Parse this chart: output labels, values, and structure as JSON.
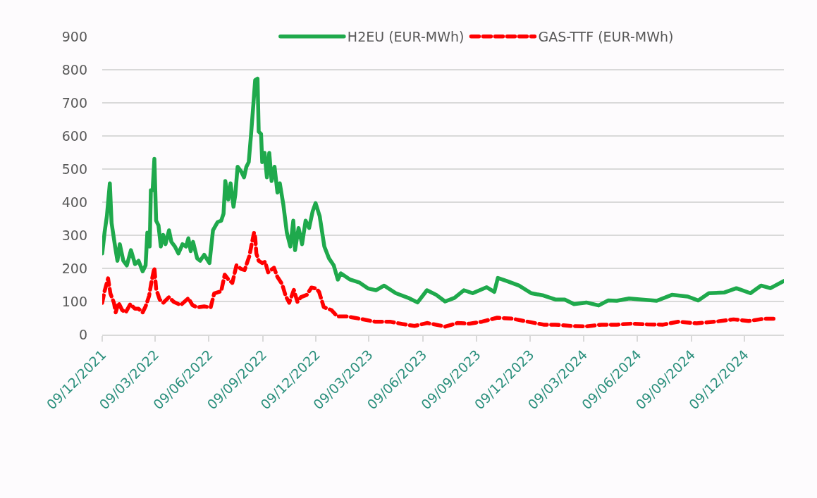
{
  "chart_data": {
    "type": "line",
    "xlim": [
      "2021-12-09",
      "2025-02-14"
    ],
    "xticks": [
      {
        "value": "2021-12-09",
        "label": "09/12/2021"
      },
      {
        "value": "2022-03-09",
        "label": "09/03/2022"
      },
      {
        "value": "2022-06-09",
        "label": "09/06/2022"
      },
      {
        "value": "2022-09-09",
        "label": "09/09/2022"
      },
      {
        "value": "2022-12-09",
        "label": "09/12/2022"
      },
      {
        "value": "2023-03-09",
        "label": "09/03/2023"
      },
      {
        "value": "2023-06-09",
        "label": "09/06/2023"
      },
      {
        "value": "2023-09-09",
        "label": "09/09/2023"
      },
      {
        "value": "2023-12-09",
        "label": "09/12/2023"
      },
      {
        "value": "2024-03-09",
        "label": "09/03/2024"
      },
      {
        "value": "2024-06-09",
        "label": "09/06/2024"
      },
      {
        "value": "2024-09-09",
        "label": "09/09/2024"
      },
      {
        "value": "2024-12-09",
        "label": "09/12/2024"
      }
    ],
    "ylim": [
      0,
      900
    ],
    "yticks": [
      0,
      100,
      200,
      300,
      400,
      500,
      600,
      700,
      800,
      900
    ],
    "grid": "y",
    "legend": "top",
    "marker": "none",
    "series": [
      {
        "name": "H2EU (EUR-MWh)",
        "color": "#1fa94c",
        "line_style": "solid",
        "x": [
          "2021-12-09",
          "2021-12-13",
          "2021-12-17",
          "2021-12-22",
          "2021-12-25",
          "2021-12-31",
          "2022-01-04",
          "2022-01-08",
          "2022-01-14",
          "2022-01-20",
          "2022-01-27",
          "2022-02-03",
          "2022-02-09",
          "2022-02-16",
          "2022-02-21",
          "2022-02-24",
          "2022-02-28",
          "2022-03-02",
          "2022-03-05",
          "2022-03-08",
          "2022-03-11",
          "2022-03-15",
          "2022-03-19",
          "2022-03-23",
          "2022-03-27",
          "2022-04-02",
          "2022-04-06",
          "2022-04-12",
          "2022-04-18",
          "2022-04-25",
          "2022-05-01",
          "2022-05-05",
          "2022-05-09",
          "2022-05-13",
          "2022-05-20",
          "2022-05-25",
          "2022-06-01",
          "2022-06-10",
          "2022-06-16",
          "2022-06-24",
          "2022-06-30",
          "2022-07-04",
          "2022-07-07",
          "2022-07-12",
          "2022-07-16",
          "2022-07-21",
          "2022-07-24",
          "2022-07-28",
          "2022-08-03",
          "2022-08-08",
          "2022-08-12",
          "2022-08-16",
          "2022-08-20",
          "2022-08-24",
          "2022-08-27",
          "2022-08-31",
          "2022-09-02",
          "2022-09-06",
          "2022-09-08",
          "2022-09-12",
          "2022-09-16",
          "2022-09-20",
          "2022-09-24",
          "2022-09-29",
          "2022-10-04",
          "2022-10-08",
          "2022-10-14",
          "2022-10-20",
          "2022-10-26",
          "2022-10-31",
          "2022-11-03",
          "2022-11-09",
          "2022-11-15",
          "2022-11-21",
          "2022-11-27",
          "2022-12-03",
          "2022-12-08",
          "2022-12-15",
          "2022-12-23",
          "2022-12-31",
          "2023-01-08",
          "2023-01-15",
          "2023-01-20",
          "2023-02-05",
          "2023-02-21",
          "2023-03-08",
          "2023-03-21",
          "2023-04-04",
          "2023-04-24",
          "2023-05-15",
          "2023-05-31",
          "2023-06-16",
          "2023-07-02",
          "2023-07-17",
          "2023-08-02",
          "2023-08-18",
          "2023-09-02",
          "2023-09-26",
          "2023-10-09",
          "2023-10-15",
          "2023-10-30",
          "2023-11-20",
          "2023-12-11",
          "2024-01-01",
          "2024-01-21",
          "2024-02-06",
          "2024-02-22",
          "2024-03-14",
          "2024-04-04",
          "2024-04-20",
          "2024-05-05",
          "2024-05-26",
          "2024-06-16",
          "2024-07-12",
          "2024-08-07",
          "2024-09-03",
          "2024-09-21",
          "2024-10-09",
          "2024-11-04",
          "2024-11-25",
          "2024-12-19",
          "2025-01-06",
          "2025-01-22",
          "2025-02-14"
        ],
        "values": [
          245,
          308,
          358,
          457,
          337,
          266,
          223,
          273,
          223,
          209,
          255,
          213,
          223,
          191,
          209,
          308,
          266,
          436,
          436,
          531,
          344,
          330,
          266,
          301,
          273,
          315,
          280,
          266,
          245,
          273,
          266,
          291,
          252,
          280,
          230,
          223,
          241,
          216,
          315,
          340,
          344,
          365,
          464,
          408,
          457,
          386,
          422,
          507,
          493,
          475,
          507,
          521,
          606,
          698,
          769,
          773,
          613,
          606,
          521,
          549,
          475,
          549,
          464,
          507,
          429,
          457,
          393,
          308,
          266,
          344,
          255,
          322,
          273,
          344,
          322,
          372,
          397,
          358,
          266,
          230,
          209,
          166,
          185,
          166,
          157,
          139,
          134,
          148,
          125,
          111,
          97,
          134,
          120,
          100,
          111,
          134,
          125,
          143,
          129,
          171,
          162,
          148,
          125,
          118,
          106,
          106,
          92,
          97,
          88,
          103,
          102,
          109,
          106,
          102,
          120,
          115,
          103,
          125,
          127,
          140,
          125,
          148,
          140,
          162
        ]
      },
      {
        "name": "GAS-TTF (EUR-MWh)",
        "color": "#ff0000",
        "line_style": "dashed",
        "x": [
          "2021-12-09",
          "2021-12-13",
          "2021-12-19",
          "2021-12-23",
          "2021-12-29",
          "2022-01-01",
          "2022-01-06",
          "2022-01-12",
          "2022-01-18",
          "2022-01-26",
          "2022-02-03",
          "2022-02-09",
          "2022-02-16",
          "2022-02-21",
          "2022-02-27",
          "2022-03-03",
          "2022-03-08",
          "2022-03-11",
          "2022-03-17",
          "2022-03-23",
          "2022-04-02",
          "2022-04-10",
          "2022-04-22",
          "2022-05-05",
          "2022-05-12",
          "2022-05-20",
          "2022-06-01",
          "2022-06-12",
          "2022-06-18",
          "2022-06-30",
          "2022-07-06",
          "2022-07-12",
          "2022-07-19",
          "2022-07-26",
          "2022-08-03",
          "2022-08-09",
          "2022-08-17",
          "2022-08-21",
          "2022-08-25",
          "2022-08-27",
          "2022-08-29",
          "2022-09-02",
          "2022-09-08",
          "2022-09-13",
          "2022-09-18",
          "2022-09-28",
          "2022-10-04",
          "2022-10-12",
          "2022-10-18",
          "2022-10-24",
          "2022-11-01",
          "2022-11-07",
          "2022-11-13",
          "2022-11-23",
          "2022-12-01",
          "2022-12-09",
          "2022-12-14",
          "2022-12-22",
          "2023-01-04",
          "2023-01-14",
          "2023-01-30",
          "2023-02-21",
          "2023-03-19",
          "2023-04-14",
          "2023-05-05",
          "2023-05-26",
          "2023-06-16",
          "2023-07-07",
          "2023-07-17",
          "2023-08-07",
          "2023-08-28",
          "2023-09-18",
          "2023-10-14",
          "2023-11-09",
          "2023-12-05",
          "2024-01-01",
          "2024-01-21",
          "2024-02-17",
          "2024-03-14",
          "2024-04-09",
          "2024-05-05",
          "2024-05-31",
          "2024-06-26",
          "2024-07-23",
          "2024-08-18",
          "2024-09-18",
          "2024-10-20",
          "2024-11-20",
          "2024-12-16",
          "2025-01-11",
          "2025-02-01"
        ],
        "values": [
          96,
          131,
          170,
          124,
          96,
          67,
          96,
          74,
          67,
          92,
          78,
          78,
          67,
          85,
          117,
          159,
          202,
          138,
          106,
          96,
          113,
          99,
          89,
          110,
          89,
          82,
          85,
          82,
          124,
          131,
          181,
          167,
          156,
          209,
          198,
          195,
          237,
          273,
          308,
          294,
          245,
          223,
          216,
          220,
          188,
          202,
          174,
          152,
          117,
          96,
          135,
          99,
          113,
          120,
          142,
          139,
          129,
          83,
          74,
          55,
          55,
          48,
          39,
          39,
          32,
          26,
          35,
          28,
          24,
          35,
          33,
          39,
          51,
          48,
          39,
          30,
          30,
          26,
          25,
          30,
          30,
          33,
          31,
          30,
          39,
          34,
          39,
          46,
          41,
          48,
          48
        ]
      }
    ]
  }
}
